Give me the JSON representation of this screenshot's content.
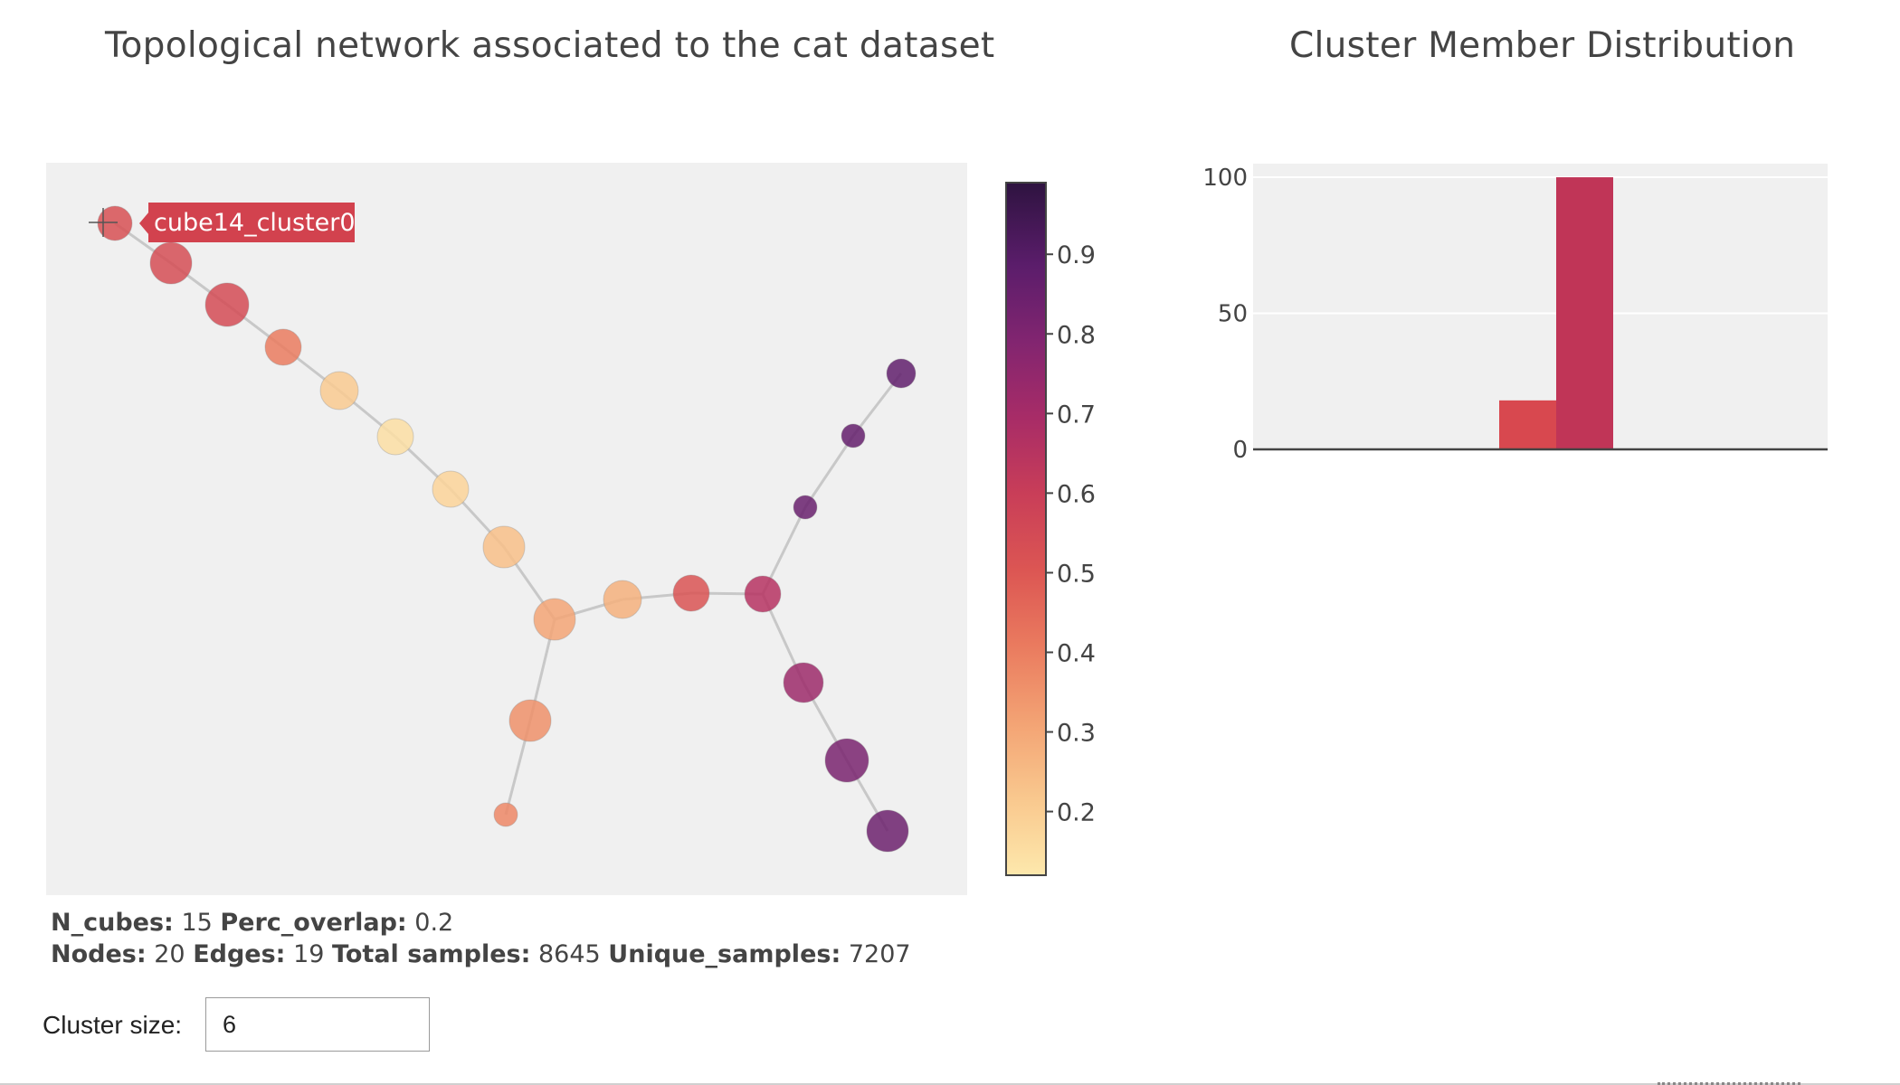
{
  "network": {
    "title": "Topological network associated to the cat dataset",
    "hover_label": "cube14_cluster0",
    "hover_color": "#d2424e",
    "edge_color": "#c8c8c8",
    "background_color": "#f0f0f0",
    "colormap": [
      "#fde8ac",
      "#f9c88e",
      "#f3a374",
      "#ea7b5f",
      "#dc5653",
      "#c93e58",
      "#a82c67",
      "#822570",
      "#5b1d6b",
      "#2e1340"
    ],
    "colorbar_ticks": [
      "0.9",
      "0.8",
      "0.7",
      "0.6",
      "0.5",
      "0.4",
      "0.3",
      "0.2"
    ],
    "colorbar_range": [
      0.12,
      0.99
    ],
    "nodes": [
      {
        "id": 0,
        "color_value": 0.53
      },
      {
        "id": 1,
        "color_value": 0.54
      },
      {
        "id": 2,
        "color_value": 0.55
      },
      {
        "id": 3,
        "color_value": 0.41
      },
      {
        "id": 4,
        "color_value": 0.21
      },
      {
        "id": 5,
        "color_value": 0.15
      },
      {
        "id": 6,
        "color_value": 0.18
      },
      {
        "id": 7,
        "color_value": 0.24
      },
      {
        "id": 8,
        "color_value": 0.28
      },
      {
        "id": 9,
        "color_value": 0.31
      },
      {
        "id": 10,
        "color_value": 0.52
      },
      {
        "id": 11,
        "color_value": 0.66
      },
      {
        "id": 12,
        "color_value": 0.86
      },
      {
        "id": 13,
        "color_value": 0.87
      },
      {
        "id": 14,
        "color_value": 0.88
      },
      {
        "id": 15,
        "color_value": 0.36
      },
      {
        "id": 16,
        "color_value": 0.38
      },
      {
        "id": 17,
        "color_value": 0.73
      },
      {
        "id": 18,
        "color_value": 0.82
      },
      {
        "id": 19,
        "color_value": 0.85
      }
    ],
    "edges": [
      [
        0,
        1
      ],
      [
        1,
        2
      ],
      [
        2,
        3
      ],
      [
        3,
        4
      ],
      [
        4,
        5
      ],
      [
        5,
        6
      ],
      [
        6,
        7
      ],
      [
        7,
        9
      ],
      [
        9,
        8
      ],
      [
        8,
        10
      ],
      [
        10,
        11
      ],
      [
        11,
        12
      ],
      [
        12,
        13
      ],
      [
        13,
        14
      ],
      [
        9,
        15
      ],
      [
        15,
        16
      ],
      [
        11,
        17
      ],
      [
        17,
        18
      ],
      [
        18,
        19
      ]
    ]
  },
  "stats": {
    "line1": [
      {
        "label": "N_cubes:",
        "value": "15"
      },
      {
        "label": "Perc_overlap:",
        "value": "0.2"
      }
    ],
    "line2": [
      {
        "label": "Nodes:",
        "value": "20"
      },
      {
        "label": "Edges:",
        "value": "19"
      },
      {
        "label": "Total samples:",
        "value": "8645"
      },
      {
        "label": "Unique_samples:",
        "value": "7207"
      }
    ]
  },
  "cluster_size": {
    "label": "Cluster size:",
    "value": "6"
  },
  "chart_data": {
    "type": "bar",
    "title": "Cluster Member Distribution",
    "y_ticks": [
      "0",
      "50",
      "100"
    ],
    "ylim": [
      0,
      105
    ],
    "values": [
      18,
      100
    ],
    "colors": [
      "#d8484f",
      "#c03557"
    ],
    "grid": true,
    "background_color": "#f0f0f0"
  }
}
